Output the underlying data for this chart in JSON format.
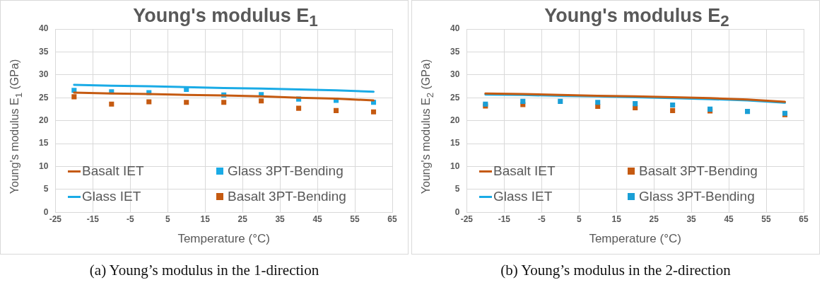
{
  "chart_data": [
    {
      "type": "scatter",
      "title": "Young's modulus E$_{1}$",
      "xlabel": "Temperature (°C)",
      "ylabel": "Young's modulus E$_{1}$ (GPa)",
      "x": [
        -20,
        -10,
        0,
        10,
        20,
        30,
        40,
        50,
        60
      ],
      "xlim": [
        -25,
        65
      ],
      "xticks": [
        -25,
        -15,
        -5,
        5,
        15,
        25,
        35,
        45,
        55,
        65
      ],
      "ylim": [
        0,
        40
      ],
      "yticks": [
        0,
        5,
        10,
        15,
        20,
        25,
        30,
        35,
        40
      ],
      "grid": true,
      "legend": "bottom",
      "annotations": [
        "(a) Young’s modulus in the 1-direction"
      ],
      "series": [
        {
          "name": "Basalt IET",
          "type": "line",
          "marker": "none",
          "color": "#c55a11",
          "values": [
            26.1,
            25.9,
            25.8,
            25.6,
            25.5,
            25.3,
            25.0,
            24.8,
            24.4
          ]
        },
        {
          "name": "Glass 3PT-Bending",
          "type": "scatter",
          "marker": "square",
          "color": "#1aabe6",
          "values": [
            26.6,
            26.3,
            26.1,
            26.8,
            25.6,
            25.7,
            24.7,
            24.4,
            24.0
          ]
        },
        {
          "name": "Glass IET",
          "type": "line",
          "marker": "none",
          "color": "#1aabe6",
          "values": [
            27.8,
            27.6,
            27.5,
            27.3,
            27.1,
            27.0,
            26.8,
            26.6,
            26.3
          ]
        },
        {
          "name": "Basalt 3PT-Bending",
          "type": "scatter",
          "marker": "square",
          "color": "#c55a11",
          "values": [
            25.2,
            23.6,
            24.1,
            24.0,
            24.0,
            24.3,
            22.7,
            22.2,
            21.9
          ]
        }
      ]
    },
    {
      "type": "scatter",
      "title": "Young's modulus E$_{2}$",
      "xlabel": "Temperature (°C)",
      "ylabel": "Young's modulus E$_{2}$ (GPa)",
      "x": [
        -20,
        -10,
        0,
        10,
        20,
        30,
        40,
        50,
        60
      ],
      "xlim": [
        -25,
        65
      ],
      "xticks": [
        -25,
        -15,
        -5,
        5,
        15,
        25,
        35,
        45,
        55,
        65
      ],
      "ylim": [
        0,
        40
      ],
      "yticks": [
        0,
        5,
        10,
        15,
        20,
        25,
        30,
        35,
        40
      ],
      "grid": true,
      "legend": "bottom",
      "annotations": [
        "(b) Young’s modulus in the 2-direction"
      ],
      "series": [
        {
          "name": "Basalt IET",
          "type": "line",
          "marker": "none",
          "color": "#c55a11",
          "values": [
            25.9,
            25.8,
            25.6,
            25.4,
            25.3,
            25.1,
            24.9,
            24.6,
            24.1
          ]
        },
        {
          "name": "Basalt 3PT-Bending",
          "type": "scatter",
          "marker": "square",
          "color": "#c55a11",
          "values": [
            23.2,
            23.5,
            null,
            23.1,
            22.8,
            22.2,
            22.1,
            null,
            21.3
          ]
        },
        {
          "name": "Glass IET",
          "type": "line",
          "marker": "none",
          "color": "#1aabe6",
          "values": [
            25.7,
            25.6,
            25.4,
            25.3,
            25.1,
            24.9,
            24.7,
            24.4,
            23.9
          ]
        },
        {
          "name": "Glass 3PT-Bending",
          "type": "scatter",
          "marker": "square",
          "color": "#1a9fd6",
          "values": [
            23.6,
            24.2,
            24.2,
            24.0,
            23.7,
            23.4,
            22.5,
            22.0,
            21.6
          ]
        }
      ]
    }
  ]
}
